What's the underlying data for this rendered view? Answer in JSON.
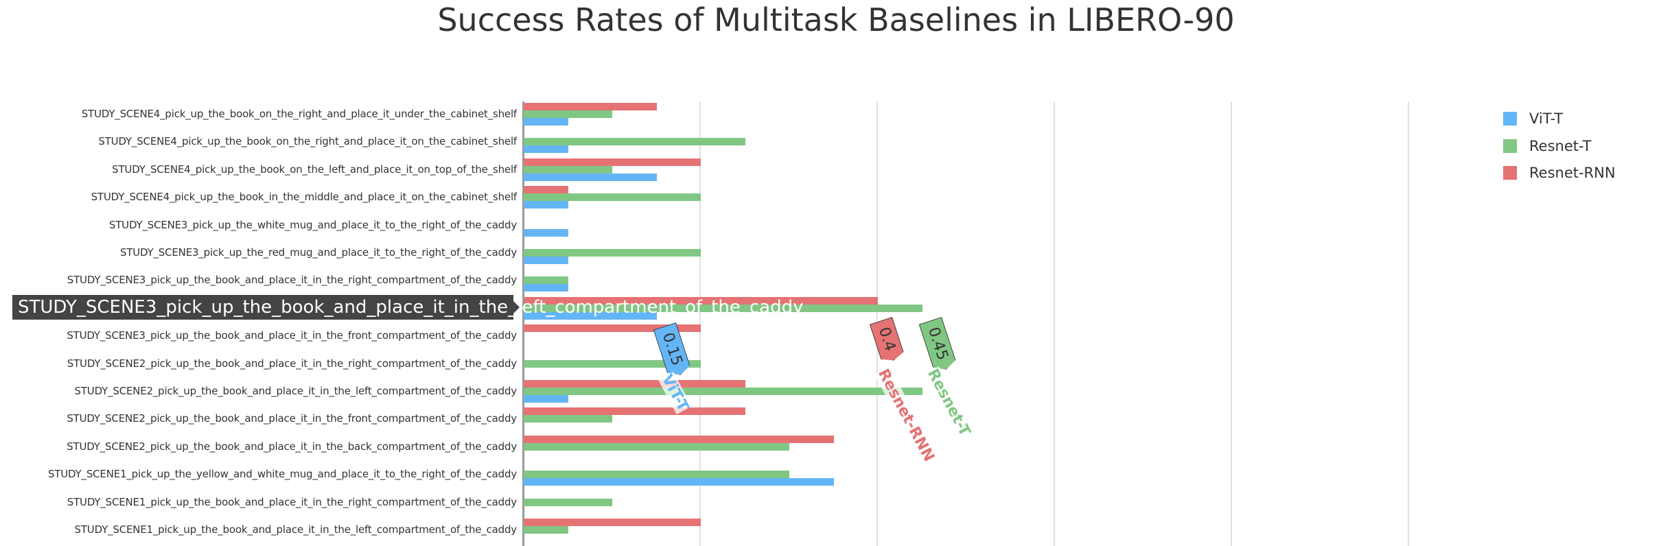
{
  "chart_data": {
    "type": "bar",
    "orientation": "horizontal",
    "title": "Success Rates of Multitask Baselines in LIBERO-90",
    "xlim": [
      0,
      1.0
    ],
    "grid": true,
    "legend_position": "top-right",
    "categories": [
      "STUDY_SCENE4_pick_up_the_book_on_the_right_and_place_it_under_the_cabinet_shelf",
      "STUDY_SCENE4_pick_up_the_book_on_the_right_and_place_it_on_the_cabinet_shelf",
      "STUDY_SCENE4_pick_up_the_book_on_the_left_and_place_it_on_top_of_the_shelf",
      "STUDY_SCENE4_pick_up_the_book_in_the_middle_and_place_it_on_the_cabinet_shelf",
      "STUDY_SCENE3_pick_up_the_white_mug_and_place_it_to_the_right_of_the_caddy",
      "STUDY_SCENE3_pick_up_the_red_mug_and_place_it_to_the_right_of_the_caddy",
      "STUDY_SCENE3_pick_up_the_book_and_place_it_in_the_right_compartment_of_the_caddy",
      "STUDY_SCENE3_pick_up_the_book_and_place_it_in_the_left_compartment_of_the_caddy",
      "STUDY_SCENE3_pick_up_the_book_and_place_it_in_the_front_compartment_of_the_caddy",
      "STUDY_SCENE2_pick_up_the_book_and_place_it_in_the_right_compartment_of_the_caddy",
      "STUDY_SCENE2_pick_up_the_book_and_place_it_in_the_left_compartment_of_the_caddy",
      "STUDY_SCENE2_pick_up_the_book_and_place_it_in_the_front_compartment_of_the_caddy",
      "STUDY_SCENE2_pick_up_the_book_and_place_it_in_the_back_compartment_of_the_caddy",
      "STUDY_SCENE1_pick_up_the_yellow_and_white_mug_and_place_it_to_the_right_of_the_caddy",
      "STUDY_SCENE1_pick_up_the_book_and_place_it_in_the_right_compartment_of_the_caddy",
      "STUDY_SCENE1_pick_up_the_book_and_place_it_in_the_left_compartment_of_the_caddy"
    ],
    "series": [
      {
        "name": "ViT-T",
        "color": "#64b5f6",
        "values": [
          0.05,
          0.05,
          0.15,
          0.05,
          0.05,
          0.05,
          0.05,
          0.15,
          0,
          0,
          0.05,
          0,
          0,
          0.35,
          0,
          0
        ]
      },
      {
        "name": "Resnet-T",
        "color": "#81c784",
        "values": [
          0.1,
          0.25,
          0.1,
          0.2,
          0,
          0.2,
          0.05,
          0.45,
          0,
          0.2,
          0.45,
          0.1,
          0.3,
          0.3,
          0.1,
          0.05
        ]
      },
      {
        "name": "Resnet-RNN",
        "color": "#e57373",
        "values": [
          0.15,
          0,
          0.2,
          0.05,
          0,
          0,
          0,
          0.4,
          0.2,
          0,
          0.25,
          0.25,
          0.35,
          0,
          0,
          0.2
        ]
      }
    ],
    "hovered_category_index": 7,
    "tooltips": [
      {
        "series": "ViT-T",
        "value": "0.15",
        "color": "#64b5f6"
      },
      {
        "series": "Resnet-RNN",
        "value": "0.4",
        "color": "#e57373"
      },
      {
        "series": "Resnet-T",
        "value": "0.45",
        "color": "#81c784"
      }
    ]
  }
}
